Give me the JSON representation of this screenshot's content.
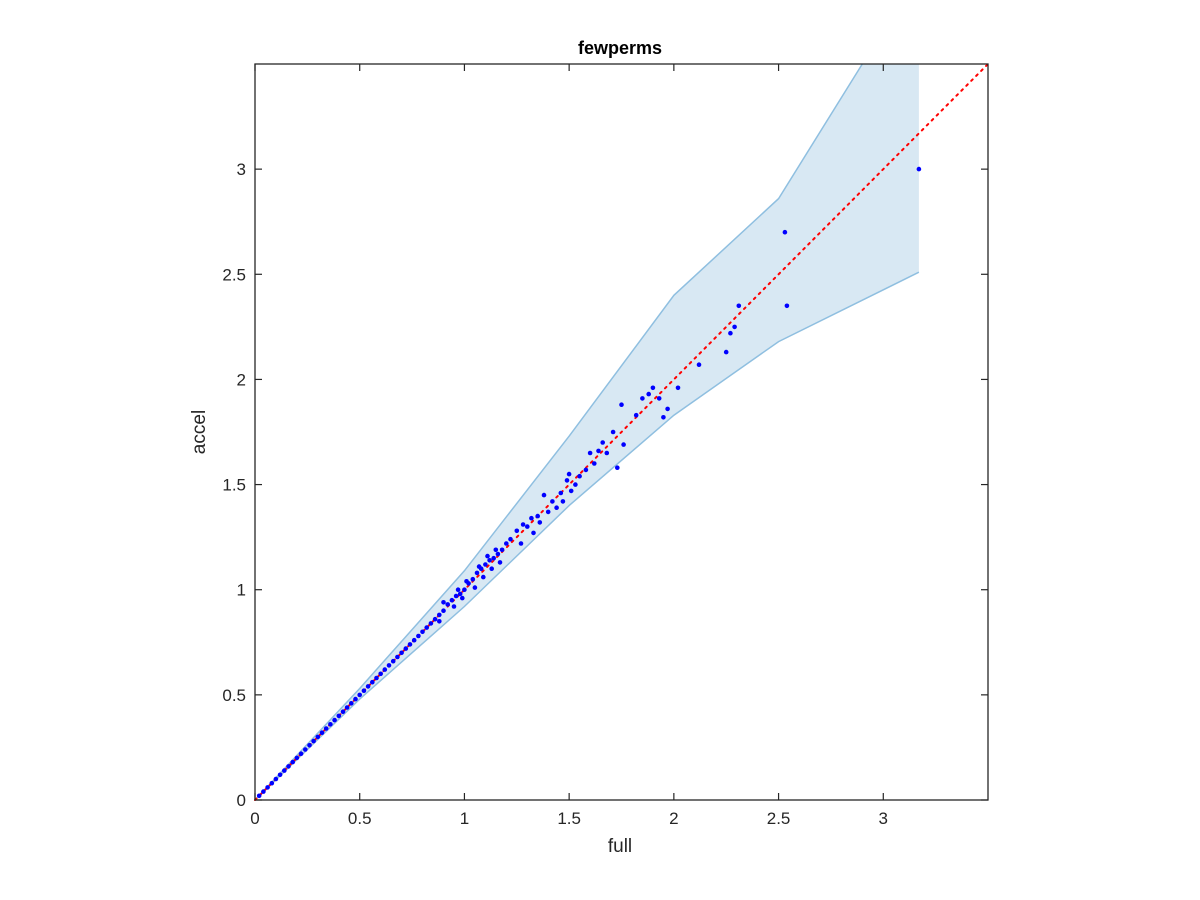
{
  "chart_data": {
    "type": "scatter",
    "title": "fewperms",
    "xlabel": "full",
    "ylabel": "accel",
    "xlim": [
      0,
      3.5
    ],
    "ylim": [
      0,
      3.5
    ],
    "xticks": [
      0,
      0.5,
      1,
      1.5,
      2,
      2.5,
      3
    ],
    "yticks": [
      0,
      0.5,
      1,
      1.5,
      2,
      2.5,
      3
    ],
    "xtick_labels": [
      "0",
      "0.5",
      "1",
      "1.5",
      "2",
      "2.5",
      "3"
    ],
    "ytick_labels": [
      "0",
      "0.5",
      "1",
      "1.5",
      "2",
      "2.5",
      "3"
    ],
    "grid": false,
    "reference_line": {
      "style": "dotted",
      "color": "#ff0000",
      "x": [
        0,
        3.5
      ],
      "y": [
        0,
        3.5
      ]
    },
    "band": {
      "fill_color": "#d8e8f3",
      "edge_color": "#8fbfe0",
      "upper": [
        [
          0,
          0
        ],
        [
          0.5,
          0.53
        ],
        [
          1.0,
          1.09
        ],
        [
          1.5,
          1.73
        ],
        [
          2.0,
          2.4
        ],
        [
          2.5,
          2.86
        ],
        [
          2.9,
          3.5
        ],
        [
          3.17,
          3.5
        ]
      ],
      "lower": [
        [
          0,
          0
        ],
        [
          0.5,
          0.48
        ],
        [
          1.0,
          0.92
        ],
        [
          1.5,
          1.4
        ],
        [
          2.0,
          1.83
        ],
        [
          2.5,
          2.18
        ],
        [
          3.17,
          2.51
        ]
      ]
    },
    "series": [
      {
        "color": "#0000ff",
        "points": [
          [
            0.02,
            0.02
          ],
          [
            0.04,
            0.04
          ],
          [
            0.06,
            0.06
          ],
          [
            0.08,
            0.08
          ],
          [
            0.1,
            0.1
          ],
          [
            0.12,
            0.12
          ],
          [
            0.14,
            0.14
          ],
          [
            0.16,
            0.16
          ],
          [
            0.18,
            0.18
          ],
          [
            0.2,
            0.2
          ],
          [
            0.22,
            0.22
          ],
          [
            0.24,
            0.24
          ],
          [
            0.26,
            0.26
          ],
          [
            0.28,
            0.28
          ],
          [
            0.3,
            0.3
          ],
          [
            0.32,
            0.32
          ],
          [
            0.34,
            0.34
          ],
          [
            0.36,
            0.36
          ],
          [
            0.38,
            0.38
          ],
          [
            0.4,
            0.4
          ],
          [
            0.42,
            0.42
          ],
          [
            0.44,
            0.44
          ],
          [
            0.46,
            0.46
          ],
          [
            0.48,
            0.48
          ],
          [
            0.5,
            0.5
          ],
          [
            0.52,
            0.52
          ],
          [
            0.54,
            0.54
          ],
          [
            0.56,
            0.56
          ],
          [
            0.58,
            0.58
          ],
          [
            0.6,
            0.6
          ],
          [
            0.62,
            0.62
          ],
          [
            0.64,
            0.64
          ],
          [
            0.66,
            0.66
          ],
          [
            0.68,
            0.68
          ],
          [
            0.7,
            0.7
          ],
          [
            0.72,
            0.72
          ],
          [
            0.74,
            0.74
          ],
          [
            0.76,
            0.76
          ],
          [
            0.78,
            0.78
          ],
          [
            0.8,
            0.8
          ],
          [
            0.82,
            0.82
          ],
          [
            0.84,
            0.84
          ],
          [
            0.86,
            0.86
          ],
          [
            0.88,
            0.88
          ],
          [
            0.9,
            0.9
          ],
          [
            0.92,
            0.93
          ],
          [
            0.94,
            0.95
          ],
          [
            0.96,
            0.97
          ],
          [
            0.98,
            0.98
          ],
          [
            1.0,
            1.0
          ],
          [
            1.02,
            1.03
          ],
          [
            1.04,
            1.05
          ],
          [
            1.06,
            1.08
          ],
          [
            1.08,
            1.1
          ],
          [
            1.1,
            1.12
          ],
          [
            1.12,
            1.14
          ],
          [
            1.14,
            1.15
          ],
          [
            1.16,
            1.17
          ],
          [
            1.18,
            1.19
          ],
          [
            1.2,
            1.22
          ],
          [
            1.22,
            1.24
          ],
          [
            0.88,
            0.85
          ],
          [
            0.9,
            0.94
          ],
          [
            0.95,
            0.92
          ],
          [
            0.97,
            1.0
          ],
          [
            0.99,
            0.96
          ],
          [
            1.01,
            1.04
          ],
          [
            1.05,
            1.01
          ],
          [
            1.07,
            1.11
          ],
          [
            1.09,
            1.06
          ],
          [
            1.11,
            1.16
          ],
          [
            1.13,
            1.1
          ],
          [
            1.15,
            1.19
          ],
          [
            1.17,
            1.13
          ],
          [
            1.25,
            1.28
          ],
          [
            1.27,
            1.22
          ],
          [
            1.28,
            1.31
          ],
          [
            1.3,
            1.3
          ],
          [
            1.32,
            1.34
          ],
          [
            1.33,
            1.27
          ],
          [
            1.35,
            1.35
          ],
          [
            1.36,
            1.32
          ],
          [
            1.38,
            1.45
          ],
          [
            1.4,
            1.37
          ],
          [
            1.42,
            1.42
          ],
          [
            1.44,
            1.39
          ],
          [
            1.46,
            1.46
          ],
          [
            1.47,
            1.42
          ],
          [
            1.49,
            1.52
          ],
          [
            1.5,
            1.55
          ],
          [
            1.51,
            1.47
          ],
          [
            1.53,
            1.5
          ],
          [
            1.55,
            1.54
          ],
          [
            1.58,
            1.57
          ],
          [
            1.6,
            1.65
          ],
          [
            1.62,
            1.6
          ],
          [
            1.64,
            1.66
          ],
          [
            1.66,
            1.7
          ],
          [
            1.68,
            1.65
          ],
          [
            1.71,
            1.75
          ],
          [
            1.73,
            1.58
          ],
          [
            1.75,
            1.88
          ],
          [
            1.76,
            1.69
          ],
          [
            1.82,
            1.83
          ],
          [
            1.85,
            1.91
          ],
          [
            1.88,
            1.93
          ],
          [
            1.9,
            1.96
          ],
          [
            1.93,
            1.91
          ],
          [
            1.95,
            1.82
          ],
          [
            1.97,
            1.86
          ],
          [
            2.02,
            1.96
          ],
          [
            2.12,
            2.07
          ],
          [
            2.25,
            2.13
          ],
          [
            2.27,
            2.22
          ],
          [
            2.29,
            2.25
          ],
          [
            2.31,
            2.35
          ],
          [
            2.53,
            2.7
          ],
          [
            2.54,
            2.35
          ],
          [
            3.17,
            3.0
          ]
        ]
      }
    ]
  }
}
